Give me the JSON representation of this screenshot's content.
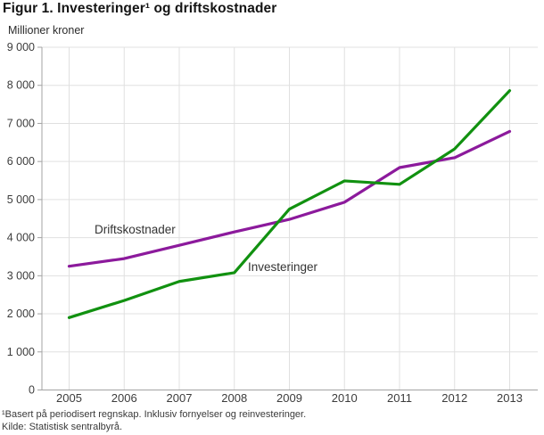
{
  "figure": {
    "title": "Figur 1. Investeringer¹ og driftskostnader",
    "unit_label": "Millioner kroner",
    "footnote": "¹Basert på periodisert regnskap. Inklusiv fornyelser og reinvesteringer.",
    "source": "Kilde: Statistisk sentralbyrå."
  },
  "chart_data": {
    "type": "line",
    "title": "Figur 1. Investeringer¹ og driftskostnader",
    "ylabel": "Millioner kroner",
    "xlabel": "",
    "x": [
      2005,
      2006,
      2007,
      2008,
      2009,
      2010,
      2011,
      2012,
      2013
    ],
    "x_tick_labels": [
      "2005",
      "2006",
      "2007",
      "2008",
      "2009",
      "2010",
      "2011",
      "2012",
      "2013"
    ],
    "ylim": [
      0,
      9000
    ],
    "y_tick_interval": 1000,
    "y_tick_labels": [
      "0",
      "1 000",
      "2 000",
      "3 000",
      "4 000",
      "5 000",
      "6 000",
      "7 000",
      "8 000",
      "9 000"
    ],
    "grid": true,
    "legend_position": "inline-labels",
    "series": [
      {
        "name": "Driftskostnader",
        "color": "#8c1a9c",
        "values": [
          3250,
          3450,
          3800,
          4150,
          4480,
          4930,
          5840,
          6100,
          6790
        ],
        "label_pos": {
          "x": 106,
          "y": 250
        }
      },
      {
        "name": "Investeringer",
        "color": "#119110",
        "values": [
          1900,
          2350,
          2850,
          3080,
          4750,
          5490,
          5400,
          6330,
          7860
        ],
        "label_pos": {
          "x": 278,
          "y": 292
        }
      }
    ],
    "colors": {
      "grid": "#e0e0e0",
      "axis": "#a3a3a3",
      "tick_text": "#3c3c3c"
    }
  }
}
